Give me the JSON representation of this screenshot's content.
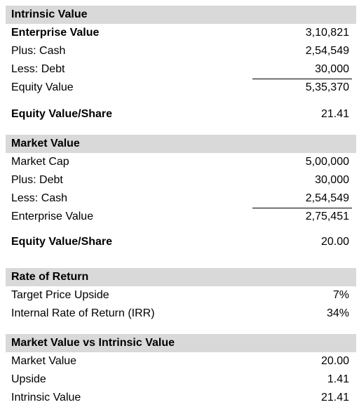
{
  "intrinsic": {
    "title": "Intrinsic Value",
    "rows": [
      {
        "label": "Enterprise Value",
        "value": "3,10,821"
      },
      {
        "label": "Plus: Cash",
        "value": "2,54,549"
      },
      {
        "label": "Less: Debt",
        "value": "30,000"
      },
      {
        "label": "Equity Value",
        "value": "5,35,370"
      }
    ],
    "per_share": {
      "label": "Equity Value/Share",
      "value": "21.41"
    }
  },
  "market": {
    "title": "Market Value",
    "rows": [
      {
        "label": "Market Cap",
        "value": "5,00,000"
      },
      {
        "label": "Plus: Debt",
        "value": "30,000"
      },
      {
        "label": "Less: Cash",
        "value": "2,54,549"
      },
      {
        "label": "Enterprise Value",
        "value": "2,75,451"
      }
    ],
    "per_share": {
      "label": "Equity Value/Share",
      "value": "20.00"
    }
  },
  "rate_of_return": {
    "title": "Rate of Return",
    "rows": [
      {
        "label": "Target Price Upside",
        "value": "7%"
      },
      {
        "label": "Internal Rate of Return (IRR)",
        "value": "34%"
      }
    ]
  },
  "comparison": {
    "title": "Market Value vs Intrinsic Value",
    "rows": [
      {
        "label": "Market Value",
        "value": "20.00"
      },
      {
        "label": "Upside",
        "value": "1.41"
      },
      {
        "label": "Intrinsic Value",
        "value": "21.41"
      }
    ]
  }
}
